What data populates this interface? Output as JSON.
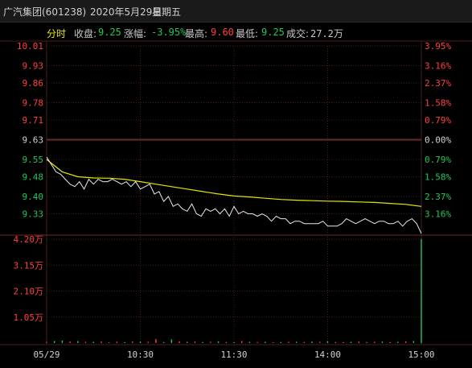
{
  "window": {
    "title": "广汽集团(601238)",
    "date": "2020年5月29日",
    "weekday": "星期五"
  },
  "infobar": {
    "mode_label": "分时",
    "close_label": "收盘:",
    "close_value": "9.25",
    "change_label": "涨幅:",
    "change_value": "-3.95%",
    "high_label": "最高:",
    "high_value": "9.60",
    "low_label": "最低:",
    "low_value": "9.25",
    "volume_label": "成交:",
    "volume_value": "27.2万"
  },
  "colors": {
    "up": "#ff4040",
    "down": "#21c65a",
    "flat": "#d0d0d0",
    "price_line": "#e8e8e8",
    "avg_line": "#e6e600",
    "grid": "#4a1c1c"
  },
  "chart_data": {
    "type": "line",
    "price_axis": {
      "left_ticks": [
        "10.01",
        "9.93",
        "9.86",
        "9.78",
        "9.71",
        "9.63",
        "9.55",
        "9.48",
        "9.40",
        "9.33"
      ],
      "right_ticks": [
        "3.95%",
        "3.16%",
        "2.37%",
        "1.58%",
        "0.79%",
        "0.00%",
        "0.79%",
        "1.58%",
        "2.37%",
        "3.16%"
      ],
      "tick_values": [
        10.01,
        9.93,
        9.86,
        9.78,
        9.71,
        9.63,
        9.55,
        9.48,
        9.4,
        9.33
      ],
      "ylim": [
        9.25,
        10.01
      ],
      "prev_close": 9.63
    },
    "volume_axis": {
      "ticks": [
        "4.20万",
        "3.15万",
        "2.10万",
        "1.05万"
      ],
      "tick_values": [
        4.2,
        3.15,
        2.1,
        1.05
      ],
      "ylim": [
        0,
        4.2
      ]
    },
    "time_axis": {
      "labels": [
        "05/29",
        "10:30",
        "11:30",
        "14:00",
        "15:00"
      ],
      "label_minutes": [
        0,
        60,
        120,
        180,
        240
      ],
      "total_minutes": 240
    },
    "series": [
      {
        "name": "price",
        "x": [
          0,
          3,
          6,
          9,
          12,
          15,
          18,
          21,
          24,
          27,
          30,
          33,
          36,
          39,
          42,
          45,
          48,
          51,
          54,
          57,
          60,
          63,
          66,
          69,
          72,
          75,
          78,
          81,
          84,
          87,
          90,
          93,
          96,
          99,
          102,
          105,
          108,
          111,
          114,
          117,
          120,
          123,
          126,
          129,
          132,
          135,
          138,
          141,
          144,
          147,
          150,
          153,
          156,
          159,
          162,
          165,
          168,
          171,
          174,
          177,
          180,
          183,
          186,
          189,
          192,
          195,
          198,
          201,
          204,
          207,
          210,
          213,
          216,
          219,
          222,
          225,
          228,
          231,
          234,
          237,
          240
        ],
        "y": [
          9.56,
          9.53,
          9.5,
          9.49,
          9.47,
          9.45,
          9.44,
          9.46,
          9.43,
          9.47,
          9.45,
          9.47,
          9.46,
          9.46,
          9.47,
          9.46,
          9.45,
          9.46,
          9.44,
          9.46,
          9.43,
          9.44,
          9.45,
          9.41,
          9.42,
          9.38,
          9.4,
          9.36,
          9.37,
          9.35,
          9.34,
          9.37,
          9.33,
          9.32,
          9.35,
          9.34,
          9.35,
          9.33,
          9.35,
          9.32,
          9.36,
          9.33,
          9.34,
          9.33,
          9.33,
          9.32,
          9.33,
          9.32,
          9.3,
          9.32,
          9.31,
          9.31,
          9.29,
          9.3,
          9.3,
          9.29,
          9.29,
          9.29,
          9.29,
          9.3,
          9.28,
          9.28,
          9.28,
          9.29,
          9.31,
          9.3,
          9.29,
          9.3,
          9.31,
          9.3,
          9.29,
          9.3,
          9.3,
          9.29,
          9.29,
          9.3,
          9.28,
          9.3,
          9.31,
          9.29,
          9.25
        ]
      },
      {
        "name": "average",
        "x": [
          0,
          10,
          20,
          30,
          40,
          50,
          60,
          70,
          80,
          90,
          100,
          110,
          120,
          130,
          140,
          150,
          160,
          170,
          180,
          190,
          200,
          210,
          220,
          230,
          240
        ],
        "y": [
          9.55,
          9.5,
          9.48,
          9.475,
          9.474,
          9.47,
          9.46,
          9.45,
          9.44,
          9.43,
          9.42,
          9.41,
          9.402,
          9.398,
          9.393,
          9.388,
          9.385,
          9.383,
          9.381,
          9.38,
          9.378,
          9.376,
          9.372,
          9.368,
          9.36
        ]
      },
      {
        "name": "volume",
        "x": [
          0,
          5,
          10,
          15,
          20,
          25,
          30,
          35,
          40,
          45,
          50,
          55,
          60,
          65,
          70,
          75,
          80,
          85,
          90,
          95,
          100,
          105,
          110,
          115,
          120,
          125,
          130,
          135,
          140,
          145,
          150,
          155,
          160,
          165,
          170,
          175,
          180,
          185,
          190,
          195,
          200,
          205,
          210,
          215,
          220,
          225,
          230,
          235,
          240
        ],
        "y": [
          0.04,
          0.08,
          0.1,
          0.06,
          0.08,
          0.05,
          0.05,
          0.06,
          0.03,
          0.05,
          0.04,
          0.06,
          0.06,
          0.05,
          0.16,
          0.04,
          0.15,
          0.07,
          0.05,
          0.06,
          0.04,
          0.05,
          0.07,
          0.04,
          0.04,
          0.08,
          0.05,
          0.04,
          0.05,
          0.03,
          0.04,
          0.05,
          0.05,
          0.04,
          0.06,
          0.05,
          0.07,
          0.04,
          0.04,
          0.05,
          0.06,
          0.04,
          0.05,
          0.06,
          0.04,
          0.05,
          0.07,
          0.08,
          4.2
        ],
        "color": [
          "up",
          "down",
          "down",
          "up",
          "down",
          "up",
          "down",
          "up",
          "down",
          "up",
          "down",
          "up",
          "down",
          "up",
          "up",
          "down",
          "down",
          "up",
          "down",
          "up",
          "down",
          "up",
          "down",
          "up",
          "down",
          "up",
          "down",
          "up",
          "down",
          "up",
          "down",
          "up",
          "down",
          "up",
          "down",
          "up",
          "down",
          "up",
          "up",
          "down",
          "up",
          "down",
          "up",
          "down",
          "up",
          "down",
          "up",
          "down",
          "down"
        ]
      }
    ],
    "grid": true
  }
}
